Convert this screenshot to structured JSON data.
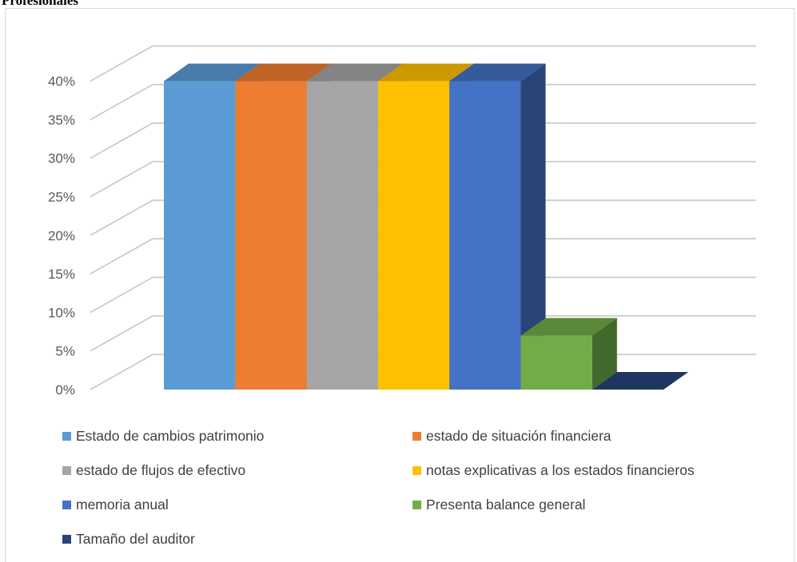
{
  "page": {
    "top_text": "Profesionales"
  },
  "chart_data": {
    "type": "bar",
    "style": "3d-column",
    "categories": [
      "Estado de cambios patrimonio",
      "estado de situación financiera",
      "estado de flujos de efectivo",
      "notas explicativas a los estados financieros",
      "memoria anual",
      "Presenta balance general",
      "Tamaño del auditor"
    ],
    "values": [
      40,
      40,
      40,
      40,
      40,
      7,
      0
    ],
    "colors": [
      "#5B9BD5",
      "#ED7D31",
      "#A5A5A5",
      "#FFC000",
      "#4472C4",
      "#70AD47",
      "#264478"
    ],
    "y_ticks": [
      "0%",
      "5%",
      "10%",
      "15%",
      "20%",
      "25%",
      "30%",
      "35%",
      "40%"
    ],
    "ylim": [
      0,
      40
    ],
    "grid": true,
    "legend_position": "bottom",
    "title": "",
    "xlabel": "",
    "ylabel": ""
  }
}
